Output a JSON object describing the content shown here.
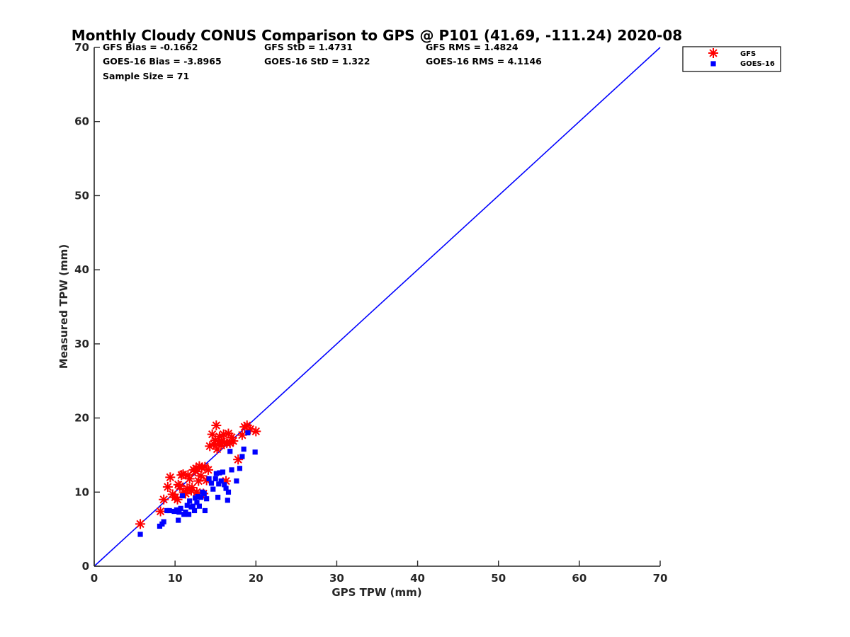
{
  "chart_data": {
    "type": "scatter",
    "title": "Monthly Cloudy CONUS Comparison to GPS @ P101 (41.69, -111.24) 2020-08",
    "xlabel": "GPS TPW (mm)",
    "ylabel": "Measured TPW (mm)",
    "xlim": [
      0,
      70
    ],
    "ylim": [
      0,
      70
    ],
    "xticks": [
      "0",
      "10",
      "20",
      "30",
      "40",
      "50",
      "60",
      "70"
    ],
    "yticks": [
      "0",
      "10",
      "20",
      "30",
      "40",
      "50",
      "60",
      "70"
    ],
    "grid": false,
    "legend_position": "top-right",
    "stats": [
      [
        "GFS Bias = -0.1662",
        "GFS StD = 1.4731",
        "GFS RMS = 1.4824"
      ],
      [
        "GOES-16 Bias = -3.8965",
        "GOES-16 StD = 1.322",
        "GOES-16 RMS = 4.1146"
      ],
      [
        "Sample Size = 71"
      ]
    ],
    "reference_line": {
      "x": [
        0,
        70
      ],
      "y": [
        0,
        70
      ],
      "color": "#0000ff"
    },
    "series": [
      {
        "name": "GFS",
        "marker": "asterisk",
        "color": "#ff0000",
        "x": [
          5.7,
          8.2,
          8.6,
          9.1,
          9.4,
          9.7,
          10.0,
          10.3,
          10.4,
          10.6,
          10.8,
          11.0,
          11.1,
          11.3,
          11.5,
          11.6,
          11.8,
          12.0,
          12.1,
          12.3,
          12.5,
          12.6,
          12.7,
          12.9,
          13.0,
          13.2,
          13.3,
          13.5,
          13.7,
          13.9,
          14.1,
          14.3,
          14.6,
          14.8,
          15.0,
          15.1,
          15.2,
          15.4,
          15.5,
          15.7,
          15.8,
          16.0,
          16.1,
          16.3,
          16.4,
          16.6,
          16.8,
          17.0,
          17.2,
          17.8,
          18.3,
          18.6,
          18.9,
          19.3,
          20.0
        ],
        "y": [
          5.7,
          7.4,
          9.0,
          10.7,
          12.0,
          9.7,
          9.3,
          9.0,
          11.0,
          10.8,
          12.3,
          12.4,
          10.0,
          9.8,
          10.5,
          12.3,
          11.8,
          10.2,
          10.6,
          13.0,
          12.8,
          13.2,
          10.0,
          11.5,
          13.5,
          12.2,
          13.3,
          9.8,
          13.4,
          11.6,
          13.0,
          16.2,
          17.8,
          16.5,
          17.0,
          19.0,
          15.8,
          16.8,
          17.5,
          16.3,
          16.8,
          17.8,
          16.7,
          11.5,
          16.6,
          17.9,
          16.6,
          17.4,
          16.9,
          14.4,
          17.7,
          18.8,
          19.0,
          18.5,
          18.2
        ]
      },
      {
        "name": "GOES-16",
        "marker": "square",
        "color": "#0000ff",
        "x": [
          5.7,
          8.1,
          8.4,
          8.6,
          9.0,
          9.3,
          9.9,
          10.2,
          10.4,
          10.5,
          10.7,
          10.9,
          11.1,
          11.3,
          11.5,
          11.7,
          11.8,
          12.0,
          12.2,
          12.4,
          12.5,
          12.7,
          12.8,
          13.0,
          13.2,
          13.4,
          13.6,
          13.7,
          13.9,
          14.2,
          14.5,
          14.7,
          15.0,
          15.1,
          15.3,
          15.4,
          15.5,
          15.7,
          15.9,
          16.1,
          16.3,
          16.5,
          16.6,
          16.8,
          17.0,
          17.6,
          18.0,
          18.3,
          18.5,
          19.0,
          19.9
        ],
        "y": [
          4.3,
          5.4,
          5.7,
          6.0,
          7.5,
          7.5,
          7.4,
          7.6,
          6.2,
          7.3,
          7.8,
          9.5,
          7.0,
          7.3,
          8.2,
          7.0,
          8.8,
          8.0,
          8.1,
          7.5,
          9.2,
          8.6,
          9.4,
          8.1,
          9.3,
          10.0,
          9.8,
          7.5,
          9.1,
          11.8,
          11.2,
          10.4,
          11.8,
          12.5,
          9.3,
          11.1,
          12.6,
          11.5,
          12.7,
          11.0,
          10.5,
          8.9,
          10.0,
          15.5,
          13.0,
          11.5,
          13.2,
          14.8,
          15.8,
          18.0,
          15.4
        ]
      }
    ]
  }
}
